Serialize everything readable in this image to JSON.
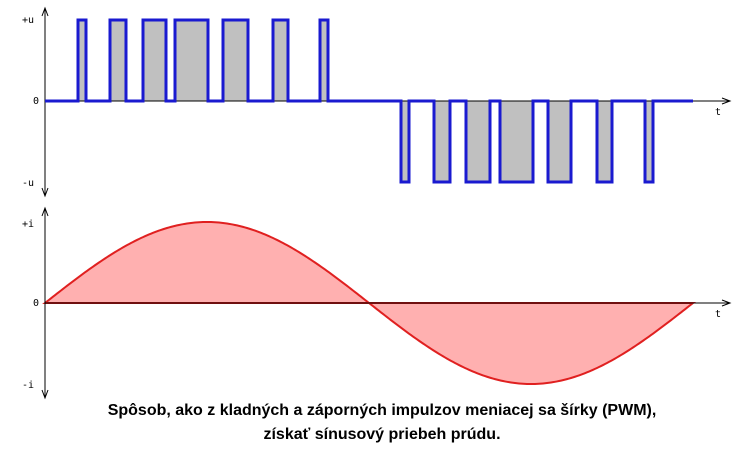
{
  "upper_axis": {
    "plus_label": "+u",
    "zero_label": "0",
    "minus_label": "-u",
    "time_label": "t"
  },
  "lower_axis": {
    "plus_label": "+i",
    "zero_label": "0",
    "minus_label": "-i",
    "time_label": "t"
  },
  "caption": {
    "line1": "Spôsob, ako z kladných a záporných impulzov meniacej sa šírky (PWM),",
    "line2": "získať sínusový priebeh prúdu."
  }
}
